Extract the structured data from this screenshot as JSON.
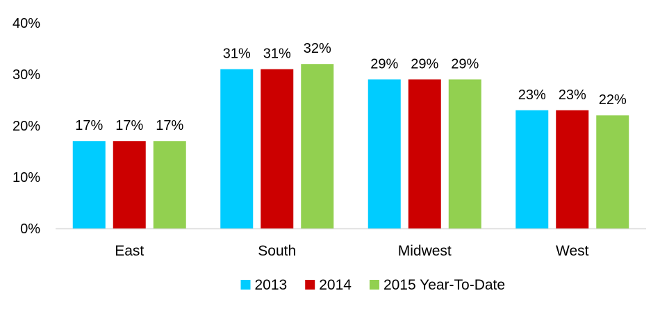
{
  "chart_data": {
    "type": "bar",
    "title": "",
    "xlabel": "",
    "ylabel": "",
    "categories": [
      "East",
      "South",
      "Midwest",
      "West"
    ],
    "series": [
      {
        "name": "2013",
        "color": "#00CCFF",
        "values": [
          17,
          31,
          29,
          23
        ],
        "labels": [
          "17%",
          "31%",
          "29%",
          "23%"
        ]
      },
      {
        "name": "2014",
        "color": "#CC0000",
        "values": [
          17,
          31,
          29,
          23
        ],
        "labels": [
          "17%",
          "31%",
          "29%",
          "23%"
        ]
      },
      {
        "name": "2015 Year-To-Date",
        "color": "#92D050",
        "values": [
          17,
          32,
          29,
          22
        ],
        "labels": [
          "17%",
          "32%",
          "29%",
          "22%"
        ]
      }
    ],
    "ylim": [
      0,
      40
    ],
    "yticks": [
      0,
      10,
      20,
      30,
      40
    ],
    "ytick_labels": [
      "0%",
      "10%",
      "20%",
      "30%",
      "40%"
    ],
    "grid": false,
    "legend_position": "bottom"
  }
}
